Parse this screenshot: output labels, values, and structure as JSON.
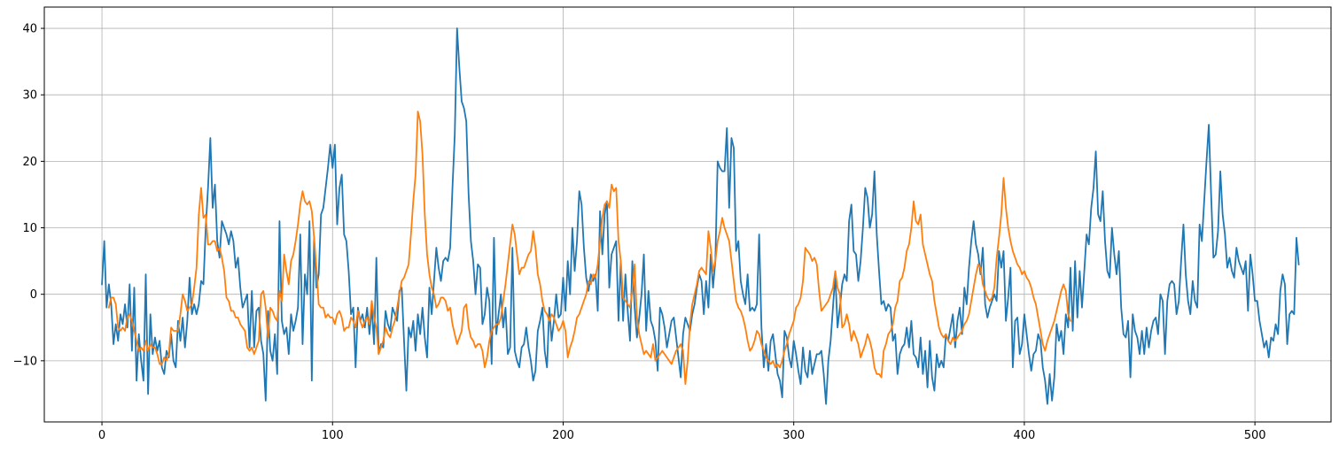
{
  "chart_data": {
    "type": "line",
    "title": "",
    "xlabel": "",
    "ylabel": "",
    "xlim": [
      -25,
      533
    ],
    "ylim": [
      -19.2,
      43.2
    ],
    "grid": true,
    "x_ticks": [
      0,
      100,
      200,
      300,
      400,
      500
    ],
    "y_ticks": [
      -10,
      0,
      10,
      20,
      30,
      40
    ],
    "x_tick_labels": [
      "0",
      "100",
      "200",
      "300",
      "400",
      "500"
    ],
    "y_tick_labels": [
      "−10",
      "0",
      "10",
      "20",
      "30",
      "40"
    ],
    "series": [
      {
        "color": "#1f77b4",
        "x_start": 0,
        "values": [
          1.5,
          8.0,
          -2.0,
          1.5,
          -1.5,
          -7.5,
          -4.5,
          -7.0,
          -3.0,
          -4.5,
          -1.5,
          -5.0,
          1.5,
          -8.5,
          1.0,
          -13.0,
          -6.0,
          -10.0,
          -13.0,
          3.0,
          -15.0,
          -3.0,
          -9.0,
          -6.5,
          -8.5,
          -7.0,
          -11.0,
          -12.0,
          -8.5,
          -9.5,
          -6.0,
          -10.0,
          -11.0,
          -4.0,
          -7.0,
          -3.5,
          -8.0,
          -4.0,
          2.5,
          -3.0,
          -1.5,
          -3.0,
          -1.5,
          2.0,
          1.5,
          10.0,
          16.0,
          23.5,
          13.0,
          16.5,
          8.0,
          5.5,
          11.0,
          10.0,
          9.0,
          7.5,
          9.5,
          8.0,
          4.0,
          5.5,
          1.0,
          -2.0,
          -1.0,
          0.0,
          -8.0,
          0.5,
          -8.0,
          -2.5,
          -2.0,
          -7.0,
          -9.0,
          -16.0,
          -2.5,
          -8.5,
          -10.0,
          -6.0,
          -12.0,
          11.0,
          -4.0,
          -6.0,
          -5.0,
          -9.0,
          -3.0,
          -5.5,
          -4.0,
          -2.0,
          9.0,
          -7.5,
          3.0,
          0.0,
          11.0,
          -13.0,
          8.5,
          1.0,
          3.0,
          12.0,
          13.0,
          16.0,
          19.0,
          22.5,
          19.0,
          22.5,
          10.5,
          16.0,
          18.0,
          9.0,
          8.0,
          3.5,
          -3.0,
          -2.0,
          -11.0,
          -2.0,
          -4.0,
          -3.0,
          -5.0,
          -2.0,
          -6.0,
          -2.0,
          -7.5,
          5.5,
          -9.0,
          -7.5,
          -8.0,
          -2.5,
          -4.5,
          -5.5,
          -2.0,
          -3.0,
          -4.0,
          0.5,
          1.0,
          -7.0,
          -14.5,
          -5.0,
          -6.5,
          -4.0,
          -8.5,
          -3.0,
          -6.0,
          -2.0,
          -6.5,
          -9.5,
          1.0,
          -3.0,
          2.0,
          7.0,
          4.0,
          2.0,
          5.0,
          5.5,
          5.0,
          7.0,
          16.0,
          24.0,
          40.0,
          34.0,
          29.0,
          28.0,
          26.0,
          15.0,
          8.0,
          5.0,
          0.0,
          4.5,
          4.0,
          -4.5,
          -3.0,
          1.0,
          -1.0,
          -10.5,
          8.5,
          -6.0,
          -3.0,
          0.0,
          -5.0,
          -2.0,
          -9.0,
          -8.0,
          7.0,
          -8.5,
          -10.0,
          -11.0,
          -8.0,
          -7.5,
          -5.0,
          -8.0,
          -10.0,
          -13.0,
          -11.5,
          -5.5,
          -4.0,
          -2.0,
          -8.5,
          -11.0,
          -2.0,
          -7.0,
          -4.0,
          0.0,
          -3.5,
          -3.0,
          2.5,
          -2.5,
          5.0,
          0.0,
          10.0,
          3.5,
          8.0,
          15.5,
          13.5,
          7.0,
          2.5,
          0.5,
          3.0,
          2.0,
          3.0,
          -2.5,
          12.5,
          6.0,
          12.0,
          14.0,
          1.0,
          6.0,
          7.0,
          8.0,
          -4.0,
          5.0,
          -4.0,
          3.0,
          -2.5,
          -7.0,
          5.0,
          -2.0,
          -6.5,
          -3.5,
          0.0,
          6.0,
          -5.5,
          0.5,
          -4.0,
          -5.0,
          -7.0,
          -11.5,
          -2.0,
          -3.0,
          -5.0,
          -8.0,
          -6.0,
          -4.0,
          -3.5,
          -6.5,
          -9.5,
          -12.5,
          -6.0,
          -3.5,
          -4.5,
          -5.5,
          -3.0,
          -1.5,
          1.0,
          3.0,
          2.0,
          -3.0,
          2.0,
          -2.0,
          6.0,
          1.0,
          5.0,
          20.0,
          19.0,
          18.5,
          18.5,
          25.0,
          13.0,
          23.5,
          22.0,
          6.5,
          8.0,
          2.0,
          0.0,
          -1.5,
          3.0,
          -2.5,
          -2.0,
          -2.5,
          -1.5,
          9.0,
          -5.0,
          -11.0,
          -7.5,
          -11.5,
          -7.0,
          -6.0,
          -9.0,
          -12.0,
          -13.0,
          -15.5,
          -5.5,
          -6.5,
          -9.5,
          -11.0,
          -7.0,
          -9.0,
          -11.5,
          -13.5,
          -8.0,
          -11.5,
          -12.5,
          -8.5,
          -12.0,
          -10.5,
          -9.0,
          -9.0,
          -8.5,
          -12.0,
          -16.5,
          -10.0,
          -7.0,
          -2.0,
          3.0,
          -5.0,
          -2.0,
          1.5,
          3.0,
          2.0,
          11.0,
          13.5,
          6.5,
          6.0,
          2.0,
          5.0,
          10.0,
          16.0,
          14.5,
          10.0,
          12.0,
          18.5,
          9.0,
          3.5,
          -1.5,
          -1.0,
          -2.5,
          -1.5,
          -2.0,
          -7.0,
          -6.0,
          -12.0,
          -9.0,
          -8.0,
          -7.5,
          -5.0,
          -8.0,
          -4.0,
          -9.0,
          -9.5,
          -11.0,
          -6.5,
          -12.0,
          -8.5,
          -14.0,
          -7.0,
          -12.5,
          -14.5,
          -9.0,
          -11.0,
          -10.0,
          -11.0,
          -6.0,
          -7.0,
          -5.0,
          -3.0,
          -8.0,
          -4.0,
          -2.0,
          -6.0,
          1.0,
          -1.5,
          4.0,
          8.0,
          11.0,
          7.5,
          6.0,
          3.0,
          7.0,
          -1.5,
          -3.5,
          -2.0,
          -1.0,
          0.0,
          -1.0,
          6.5,
          4.0,
          6.5,
          -4.0,
          -0.5,
          4.0,
          -11.0,
          -4.0,
          -3.5,
          -9.0,
          -7.5,
          -3.0,
          -6.0,
          -9.0,
          -11.5,
          -9.0,
          -8.5,
          -6.0,
          -7.0,
          -11.0,
          -13.0,
          -16.5,
          -12.0,
          -16.0,
          -12.5,
          -4.5,
          -7.0,
          -5.5,
          -9.0,
          -3.0,
          -5.0,
          4.0,
          -5.5,
          5.0,
          -3.5,
          3.5,
          -2.0,
          3.5,
          9.0,
          7.5,
          13.0,
          16.0,
          21.5,
          12.0,
          11.0,
          15.5,
          8.0,
          3.5,
          2.5,
          10.0,
          6.0,
          3.0,
          6.5,
          -2.0,
          -6.0,
          -6.5,
          -4.0,
          -12.5,
          -3.0,
          -5.5,
          -6.5,
          -9.0,
          -5.5,
          -9.0,
          -5.0,
          -8.0,
          -5.5,
          -4.0,
          -3.5,
          -6.0,
          0.0,
          -1.0,
          -9.0,
          -1.0,
          1.5,
          2.0,
          1.5,
          -3.0,
          -1.0,
          5.0,
          10.5,
          3.0,
          -1.0,
          -3.0,
          2.0,
          -1.0,
          -2.0,
          10.5,
          8.0,
          14.0,
          20.0,
          25.5,
          15.0,
          5.5,
          6.0,
          9.5,
          18.5,
          12.0,
          9.0,
          4.0,
          5.5,
          3.5,
          2.5,
          7.0,
          5.0,
          4.0,
          3.0,
          5.0,
          -2.5,
          6.0,
          3.0,
          -1.0,
          -1.0,
          -4.0,
          -6.0,
          -8.0,
          -7.0,
          -9.5,
          -6.5,
          -7.0,
          -4.5,
          -6.0,
          0.5,
          3.0,
          1.5,
          -7.5,
          -3.0,
          -2.5,
          -3.0,
          8.5,
          4.5
        ]
      },
      {
        "color": "#ff7f0e",
        "x_start": 3,
        "values": [
          -2.0,
          -0.5,
          -0.5,
          -1.5,
          -5.0,
          -5.5,
          -5.0,
          -5.5,
          -3.5,
          -3.0,
          -4.0,
          -5.5,
          -7.0,
          -8.5,
          -8.0,
          -8.5,
          -7.0,
          -8.5,
          -7.5,
          -8.0,
          -8.0,
          -9.0,
          -10.5,
          -10.5,
          -9.5,
          -10.0,
          -9.0,
          -5.0,
          -5.5,
          -5.5,
          -5.5,
          -3.0,
          0.0,
          -1.0,
          -2.5,
          -2.0,
          -1.5,
          1.0,
          4.0,
          12.0,
          16.0,
          11.5,
          12.0,
          7.5,
          7.5,
          8.0,
          8.0,
          6.5,
          7.0,
          5.5,
          3.5,
          -0.5,
          -1.0,
          -2.5,
          -2.5,
          -3.5,
          -3.5,
          -4.5,
          -5.0,
          -5.5,
          -8.0,
          -8.5,
          -8.0,
          -9.0,
          -8.0,
          -7.0,
          0.0,
          0.5,
          -2.0,
          -6.5,
          -2.0,
          -2.5,
          -3.5,
          -4.0,
          0.5,
          -1.0,
          6.0,
          3.5,
          1.5,
          5.0,
          6.0,
          8.0,
          10.5,
          13.5,
          15.5,
          14.0,
          13.5,
          14.0,
          12.5,
          8.5,
          4.0,
          -1.5,
          -2.0,
          -2.0,
          -3.5,
          -3.0,
          -3.5,
          -3.5,
          -4.5,
          -3.0,
          -2.5,
          -3.5,
          -5.5,
          -5.0,
          -5.0,
          -3.5,
          -4.0,
          -5.0,
          -2.5,
          -4.0,
          -5.0,
          -4.0,
          -3.5,
          -4.5,
          -1.0,
          -3.5,
          -5.0,
          -9.0,
          -8.0,
          -7.0,
          -5.0,
          -6.0,
          -6.5,
          -5.0,
          -4.0,
          -2.0,
          0.0,
          2.0,
          2.5,
          3.5,
          4.5,
          9.0,
          14.0,
          18.0,
          27.5,
          26.0,
          21.0,
          12.0,
          6.0,
          3.0,
          1.0,
          0.0,
          -2.0,
          -1.5,
          -0.5,
          -0.5,
          -1.0,
          -2.5,
          -2.0,
          -4.5,
          -6.0,
          -7.5,
          -6.5,
          -5.5,
          -2.0,
          -1.5,
          -5.0,
          -6.5,
          -7.0,
          -8.0,
          -7.5,
          -7.5,
          -8.5,
          -11.0,
          -9.5,
          -7.0,
          -5.5,
          -5.0,
          -4.5,
          -4.5,
          -3.5,
          -1.0,
          1.5,
          4.5,
          7.5,
          10.5,
          9.0,
          6.0,
          3.0,
          4.0,
          4.0,
          5.0,
          6.0,
          6.5,
          9.5,
          7.0,
          3.0,
          1.5,
          -1.0,
          -2.5,
          -3.0,
          -4.0,
          -3.0,
          -3.5,
          -4.5,
          -5.5,
          -5.0,
          -4.0,
          -5.5,
          -9.5,
          -8.0,
          -7.0,
          -5.5,
          -3.5,
          -3.0,
          -2.0,
          -1.0,
          0.0,
          2.0,
          1.5,
          3.0,
          2.5,
          4.5,
          8.0,
          11.5,
          13.5,
          14.0,
          13.0,
          16.5,
          15.5,
          16.0,
          8.0,
          5.0,
          -0.5,
          -1.0,
          -1.5,
          -2.0,
          0.5,
          4.5,
          -3.5,
          -6.0,
          -7.5,
          -9.0,
          -8.5,
          -9.0,
          -9.5,
          -7.5,
          -10.0,
          -9.5,
          -9.0,
          -8.5,
          -9.0,
          -9.5,
          -10.0,
          -10.5,
          -9.5,
          -8.5,
          -8.0,
          -7.5,
          -8.5,
          -13.5,
          -10.0,
          -4.5,
          -1.5,
          0.0,
          1.5,
          3.5,
          4.0,
          3.5,
          3.0,
          9.5,
          7.0,
          3.5,
          5.0,
          8.0,
          9.5,
          11.5,
          10.0,
          9.0,
          8.0,
          5.0,
          2.0,
          -1.0,
          -2.0,
          -2.5,
          -3.5,
          -5.0,
          -7.0,
          -8.5,
          -8.0,
          -7.0,
          -5.5,
          -6.0,
          -7.5,
          -8.5,
          -9.5,
          -10.0,
          -10.5,
          -10.0,
          -11.0,
          -10.5,
          -11.0,
          -10.0,
          -8.5,
          -7.5,
          -6.0,
          -5.0,
          -4.0,
          -2.0,
          -1.5,
          -0.5,
          2.0,
          7.0,
          6.5,
          6.0,
          5.0,
          5.5,
          4.5,
          0.5,
          -2.5,
          -2.0,
          -1.5,
          -1.0,
          0.0,
          1.0,
          3.5,
          1.0,
          0.0,
          -5.0,
          -4.5,
          -3.0,
          -4.5,
          -7.0,
          -5.5,
          -6.5,
          -7.5,
          -9.5,
          -8.5,
          -7.5,
          -6.0,
          -7.0,
          -8.5,
          -11.0,
          -12.0,
          -12.0,
          -12.5,
          -8.5,
          -7.5,
          -6.0,
          -5.5,
          -4.5,
          -2.0,
          -1.0,
          2.0,
          2.5,
          4.0,
          6.5,
          7.5,
          10.0,
          14.0,
          11.0,
          10.5,
          12.0,
          7.5,
          6.0,
          4.5,
          3.0,
          2.0,
          -1.0,
          -3.0,
          -5.0,
          -6.0,
          -6.5,
          -6.0,
          -7.0,
          -7.5,
          -6.5,
          -7.0,
          -6.5,
          -6.0,
          -5.5,
          -4.5,
          -4.0,
          -3.0,
          -1.0,
          1.0,
          3.0,
          4.5,
          4.0,
          1.5,
          0.5,
          -0.5,
          -1.0,
          -0.5,
          1.0,
          5.5,
          8.5,
          12.0,
          17.5,
          13.0,
          10.0,
          8.0,
          6.5,
          5.5,
          4.5,
          4.0,
          3.0,
          3.5,
          2.5,
          2.0,
          1.0,
          -0.5,
          -1.5,
          -3.5,
          -5.5,
          -7.5,
          -8.5,
          -7.0,
          -6.0,
          -5.0,
          -4.0,
          -2.5,
          -1.0,
          0.5,
          1.5,
          0.5,
          -3.0,
          -4.0
        ]
      }
    ]
  }
}
